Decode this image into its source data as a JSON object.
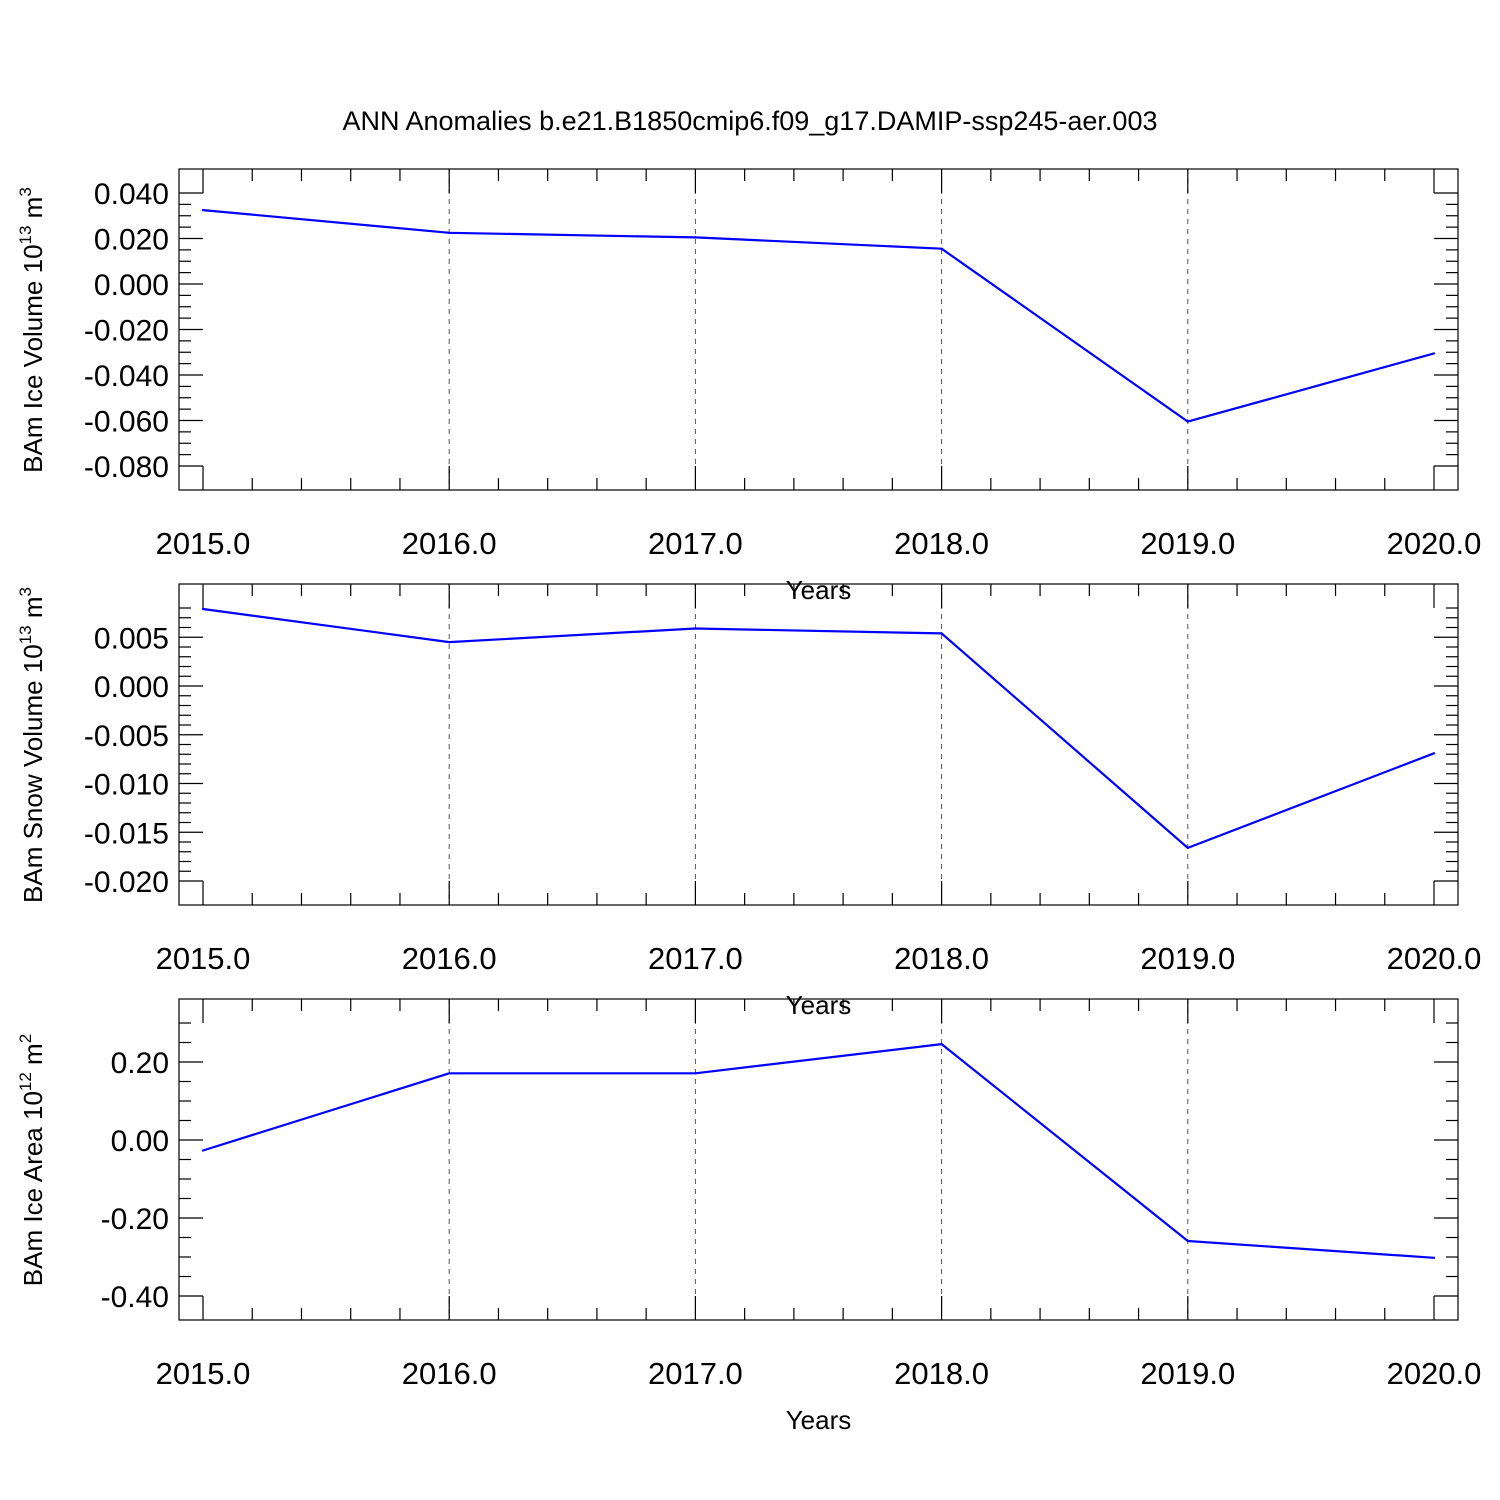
{
  "figure": {
    "title": "ANN Anomalies b.e21.B1850cmip6.f09_g17.DAMIP-ssp245-aer.003",
    "line_color": "#0000ff"
  },
  "chart_data": [
    {
      "type": "line",
      "title": "",
      "xlabel": "Years",
      "ylabel": {
        "text": "BAm Ice Volume 10",
        "sup": "13",
        "unit": " m",
        "unit_sup": "3"
      },
      "x": [
        2015,
        2016,
        2017,
        2018,
        2019,
        2020
      ],
      "xlim": [
        2015,
        2020
      ],
      "xticks": [
        2015,
        2016,
        2017,
        2018,
        2019,
        2020
      ],
      "xtick_labels": [
        "2015.0",
        "2016.0",
        "2017.0",
        "2018.0",
        "2019.0",
        "2020.0"
      ],
      "xminor_per_major": 5,
      "ylim": [
        -0.08,
        0.04
      ],
      "yticks": [
        -0.08,
        -0.06,
        -0.04,
        -0.02,
        0.0,
        0.02,
        0.04
      ],
      "ytick_labels": [
        "-0.080",
        "-0.060",
        "-0.040",
        "-0.020",
        "0.000",
        "0.020",
        "0.040"
      ],
      "yminor_per_major": 4,
      "grid": "vertical-dashed",
      "series": [
        {
          "values": [
            0.0325,
            0.0225,
            0.0205,
            0.0155,
            -0.0605,
            -0.0305
          ],
          "color": "#0000ff"
        }
      ]
    },
    {
      "type": "line",
      "title": "",
      "xlabel": "Years",
      "ylabel": {
        "text": "BAm Snow Volume 10",
        "sup": "13",
        "unit": " m",
        "unit_sup": "3"
      },
      "x": [
        2015,
        2016,
        2017,
        2018,
        2019,
        2020
      ],
      "xlim": [
        2015,
        2020
      ],
      "xticks": [
        2015,
        2016,
        2017,
        2018,
        2019,
        2020
      ],
      "xtick_labels": [
        "2015.0",
        "2016.0",
        "2017.0",
        "2018.0",
        "2019.0",
        "2020.0"
      ],
      "xminor_per_major": 5,
      "ylim": [
        -0.02,
        0.008
      ],
      "yticks": [
        -0.02,
        -0.015,
        -0.01,
        -0.005,
        0.0,
        0.005
      ],
      "ytick_labels": [
        "-0.020",
        "-0.015",
        "-0.010",
        "-0.005",
        "0.000",
        "0.005"
      ],
      "yminor_per_major": 5,
      "grid": "vertical-dashed",
      "series": [
        {
          "values": [
            0.0079,
            0.0045,
            0.0059,
            0.0054,
            -0.0166,
            -0.0069
          ],
          "color": "#0000ff"
        }
      ]
    },
    {
      "type": "line",
      "title": "",
      "xlabel": "Years",
      "ylabel": {
        "text": "BAm Ice Area 10",
        "sup": "12",
        "unit": " m",
        "unit_sup": "2"
      },
      "x": [
        2015,
        2016,
        2017,
        2018,
        2019,
        2020
      ],
      "xlim": [
        2015,
        2020
      ],
      "xticks": [
        2015,
        2016,
        2017,
        2018,
        2019,
        2020
      ],
      "xtick_labels": [
        "2015.0",
        "2016.0",
        "2017.0",
        "2018.0",
        "2019.0",
        "2020.0"
      ],
      "xminor_per_major": 5,
      "ylim": [
        -0.4,
        0.3
      ],
      "yticks": [
        -0.4,
        -0.2,
        0.0,
        0.2
      ],
      "ytick_labels": [
        "-0.40",
        "-0.20",
        "0.00",
        "0.20"
      ],
      "yminor_per_major": 4,
      "grid": "vertical-dashed",
      "series": [
        {
          "values": [
            -0.027,
            0.171,
            0.171,
            0.246,
            -0.259,
            -0.302
          ],
          "color": "#0000ff"
        }
      ]
    }
  ]
}
